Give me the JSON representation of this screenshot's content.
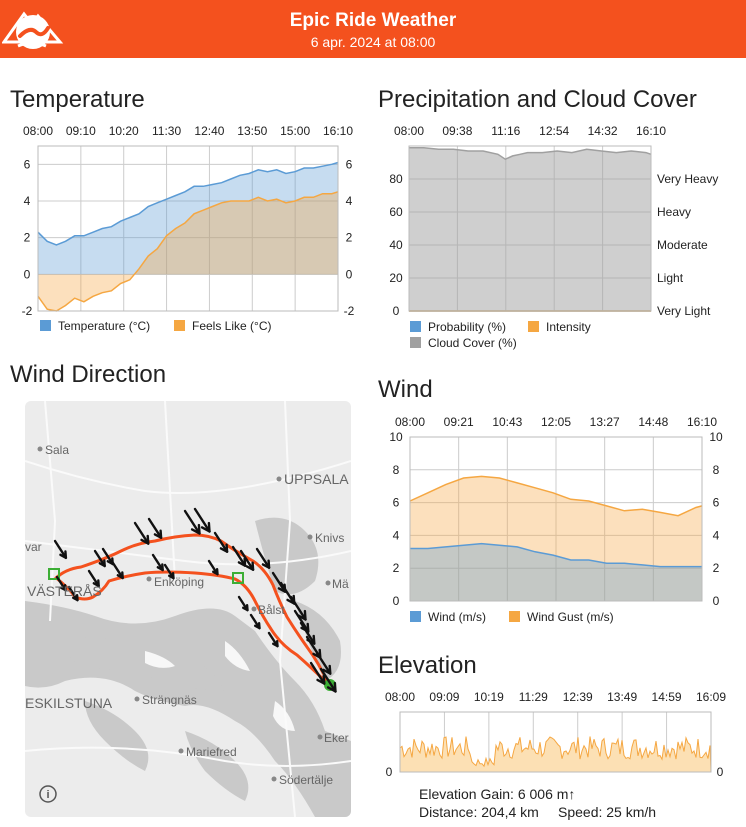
{
  "header": {
    "title": "Epic Ride Weather",
    "subtitle": "6 apr. 2024 at 08:00"
  },
  "sections": {
    "temperature": "Temperature",
    "precipitation": "Precipitation and Cloud Cover",
    "wind_direction": "Wind Direction",
    "wind": "Wind",
    "elevation": "Elevation"
  },
  "colors": {
    "header": "#f4511e",
    "blue": "#5b9bd5",
    "orange": "#f5a742",
    "gray": "#a0a0a0",
    "route": "#f4511e"
  },
  "chart_data": [
    {
      "id": "temperature",
      "type": "area",
      "time_labels": [
        "08:00",
        "09:10",
        "10:20",
        "11:30",
        "12:40",
        "13:50",
        "15:00",
        "16:10"
      ],
      "ylim": [
        -2,
        7
      ],
      "yticks": [
        "6",
        "4",
        "2",
        "0",
        "-2"
      ],
      "x_hours": [
        0,
        0.25,
        0.5,
        0.75,
        1.0,
        1.25,
        1.5,
        1.75,
        2.0,
        2.25,
        2.5,
        2.75,
        3.0,
        3.25,
        3.5,
        3.75,
        4.0,
        4.25,
        4.5,
        4.75,
        5.0,
        5.25,
        5.5,
        5.75,
        6.0,
        6.25,
        6.5,
        6.75,
        7.0,
        7.25,
        7.5,
        7.75,
        8.0,
        8.17
      ],
      "series": [
        {
          "name": "Temperature (°C)",
          "color": "#5b9bd5",
          "values": [
            2.3,
            1.8,
            1.6,
            1.8,
            2.1,
            2.1,
            2.3,
            2.5,
            2.6,
            2.9,
            3.1,
            3.3,
            3.7,
            3.9,
            4.1,
            4.3,
            4.5,
            4.8,
            4.8,
            4.9,
            5.0,
            5.2,
            5.4,
            5.5,
            5.7,
            5.6,
            5.7,
            5.5,
            5.6,
            5.8,
            5.8,
            5.9,
            6.0,
            6.1
          ]
        },
        {
          "name": "Feels Like (°C)",
          "color": "#f5a742",
          "values": [
            -1.2,
            -1.9,
            -2.0,
            -1.7,
            -1.3,
            -1.5,
            -1.2,
            -1.0,
            -0.9,
            -0.5,
            -0.3,
            0.3,
            1.0,
            1.4,
            2.1,
            2.5,
            2.8,
            3.3,
            3.5,
            3.7,
            3.9,
            4.0,
            4.0,
            4.0,
            4.2,
            4.0,
            4.1,
            3.9,
            4.0,
            4.2,
            4.2,
            4.4,
            4.4,
            4.5
          ]
        }
      ]
    },
    {
      "id": "precipitation",
      "type": "area",
      "time_labels": [
        "08:00",
        "09:38",
        "11:16",
        "12:54",
        "14:32",
        "16:10"
      ],
      "ylim": [
        0,
        100
      ],
      "yticks": [
        "80",
        "60",
        "40",
        "20",
        "0"
      ],
      "right_labels": [
        "Very Heavy",
        "Heavy",
        "Moderate",
        "Light",
        "Very Light"
      ],
      "x_hours": [
        0,
        0.5,
        1.0,
        1.5,
        2.0,
        2.5,
        3.0,
        3.25,
        3.5,
        3.75,
        4.0,
        4.5,
        5.0,
        5.5,
        6.0,
        6.5,
        7.0,
        7.5,
        8.0,
        8.17
      ],
      "series": [
        {
          "name": "Probability (%)",
          "color": "#5b9bd5",
          "values": [
            0,
            0,
            0,
            0,
            0,
            0,
            0,
            0,
            0,
            0,
            0,
            0,
            0,
            0,
            0,
            0,
            0,
            0,
            0,
            0
          ]
        },
        {
          "name": "Intensity",
          "color": "#f5a742",
          "values": [
            0,
            0,
            0,
            0,
            0,
            0,
            0,
            0,
            0,
            0,
            0,
            0,
            0,
            0,
            0,
            0,
            0,
            0,
            0,
            0
          ]
        },
        {
          "name": "Cloud Cover (%)",
          "color": "#a0a0a0",
          "values": [
            99,
            99,
            98,
            98,
            97,
            97,
            95,
            92,
            94,
            95,
            96,
            96,
            97,
            96,
            98,
            97,
            96,
            97,
            96,
            95
          ]
        }
      ]
    },
    {
      "id": "wind",
      "type": "area",
      "time_labels": [
        "08:00",
        "09:21",
        "10:43",
        "12:05",
        "13:27",
        "14:48",
        "16:10"
      ],
      "ylim": [
        0,
        10
      ],
      "yticks": [
        "10",
        "8",
        "6",
        "4",
        "2",
        "0"
      ],
      "x_hours": [
        0,
        0.5,
        1.0,
        1.5,
        2.0,
        2.5,
        3.0,
        3.5,
        4.0,
        4.5,
        5.0,
        5.5,
        6.0,
        6.5,
        7.0,
        7.5,
        8.0,
        8.17
      ],
      "series": [
        {
          "name": "Wind (m/s)",
          "color": "#5b9bd5",
          "values": [
            3.2,
            3.2,
            3.3,
            3.4,
            3.5,
            3.4,
            3.3,
            3.0,
            2.8,
            2.5,
            2.5,
            2.3,
            2.3,
            2.2,
            2.1,
            2.1,
            2.1,
            2.1
          ]
        },
        {
          "name": "Wind Gust (m/s)",
          "color": "#f5a742",
          "values": [
            6.1,
            6.6,
            7.1,
            7.5,
            7.6,
            7.5,
            7.2,
            6.9,
            6.6,
            6.2,
            6.1,
            5.8,
            5.5,
            5.6,
            5.4,
            5.2,
            5.7,
            5.8
          ]
        }
      ]
    },
    {
      "id": "elevation",
      "type": "area",
      "time_labels": [
        "08:00",
        "09:09",
        "10:19",
        "11:29",
        "12:39",
        "13:49",
        "14:59",
        "16:09"
      ],
      "ylim": [
        0,
        1
      ],
      "yticks": [
        "0"
      ],
      "series": [
        {
          "name": "Elevation",
          "color": "#f5a742"
        }
      ]
    }
  ],
  "map": {
    "labels": [
      "Sala",
      "UPPSALA",
      "Knivs",
      "Mä",
      "Enköping",
      "VÄSTERÅS",
      "Bålst",
      "ESKILSTUNA",
      "Strängnäs",
      "Mariefred",
      "Eker",
      "Södertälje",
      "var"
    ],
    "info_icon": "info-icon"
  },
  "stats": {
    "elevation_gain": "Elevation Gain: 6 006 m↑",
    "distance": "Distance: 204,4 km",
    "speed": "Speed: 25 km/h"
  }
}
